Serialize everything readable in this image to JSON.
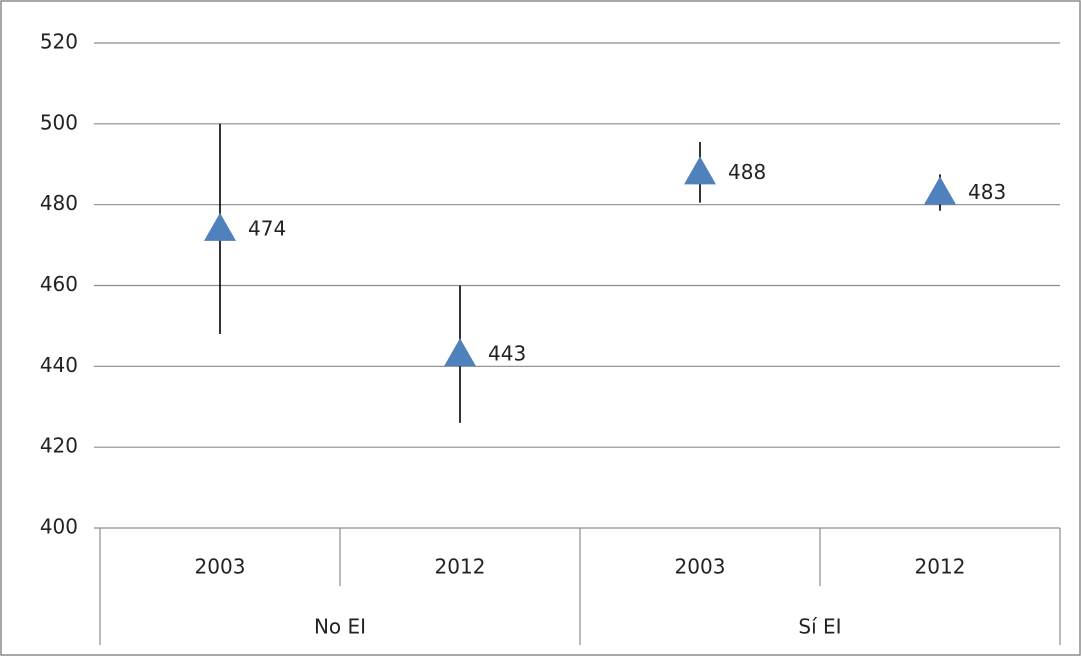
{
  "chart_data": {
    "type": "errorbar",
    "categories": [
      "2003",
      "2012",
      "2003",
      "2012"
    ],
    "groups": [
      "No EI",
      "Sí EI"
    ],
    "values": [
      474,
      443,
      488,
      483
    ],
    "errors": [
      26,
      17,
      7.5,
      4.5
    ],
    "color": "#4f81bd",
    "ylim": [
      400,
      520
    ],
    "yticks": [
      400,
      420,
      440,
      460,
      480,
      500,
      520
    ],
    "grid": true
  }
}
